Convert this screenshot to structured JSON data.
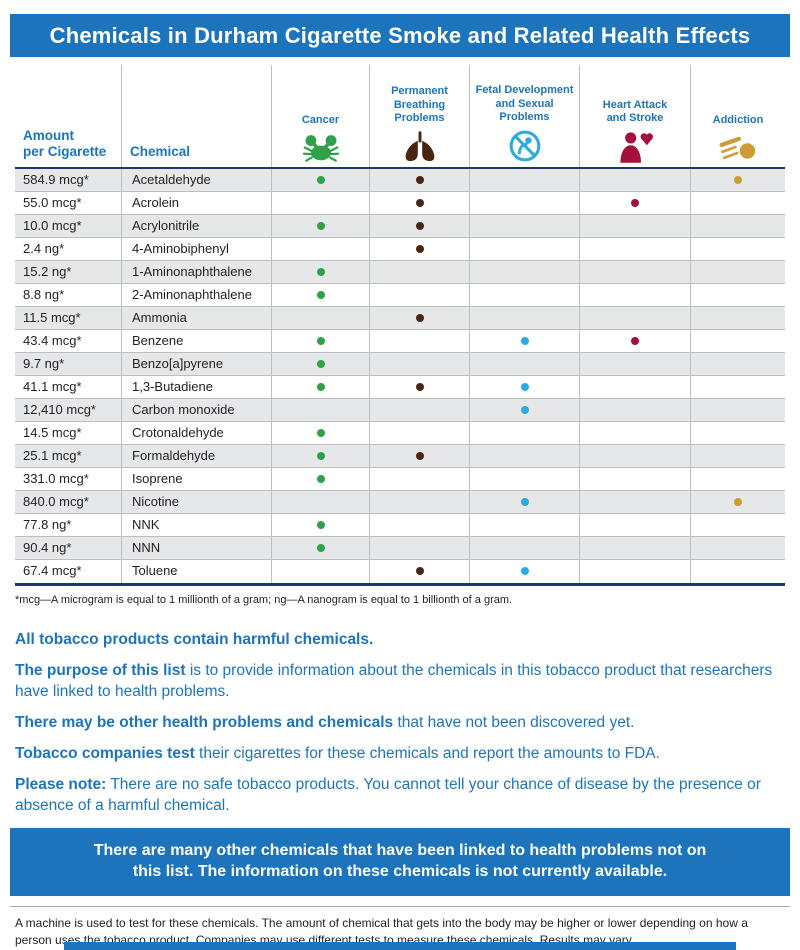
{
  "title": "Chemicals in Durham Cigarette Smoke and Related Health Effects",
  "table": {
    "amount_header": "Amount\nper Cigarette",
    "chemical_header": "Chemical",
    "columns": [
      {
        "key": "cancer",
        "label": "Cancer",
        "icon": "cancer-crab-icon",
        "dot_color": "#2FA148"
      },
      {
        "key": "breathing",
        "label": "Permanent\nBreathing\nProblems",
        "icon": "lungs-icon",
        "dot_color": "#4A2511"
      },
      {
        "key": "fetal",
        "label": "Fetal Development\nand Sexual\nProblems",
        "icon": "fetal-prohibited-icon",
        "dot_color": "#29ABE2"
      },
      {
        "key": "heart",
        "label": "Heart Attack\nand Stroke",
        "icon": "heart-attack-stroke-icon",
        "dot_color": "#A50F3C"
      },
      {
        "key": "addiction",
        "label": "Addiction",
        "icon": "addiction-icon",
        "dot_color": "#CE9B38"
      }
    ],
    "rows": [
      {
        "amount": "584.9 mcg*",
        "chemical": "Acetaldehyde",
        "effects": [
          "cancer",
          "breathing",
          "addiction"
        ]
      },
      {
        "amount": "55.0 mcg*",
        "chemical": "Acrolein",
        "effects": [
          "breathing",
          "heart"
        ]
      },
      {
        "amount": "10.0 mcg*",
        "chemical": "Acrylonitrile",
        "effects": [
          "cancer",
          "breathing"
        ]
      },
      {
        "amount": "2.4 ng*",
        "chemical": "4-Aminobiphenyl",
        "effects": [
          "breathing"
        ]
      },
      {
        "amount": "15.2 ng*",
        "chemical": "1-Aminonaphthalene",
        "effects": [
          "cancer"
        ]
      },
      {
        "amount": "8.8 ng*",
        "chemical": "2-Aminonaphthalene",
        "effects": [
          "cancer"
        ]
      },
      {
        "amount": "11.5 mcg*",
        "chemical": "Ammonia",
        "effects": [
          "breathing"
        ]
      },
      {
        "amount": "43.4 mcg*",
        "chemical": "Benzene",
        "effects": [
          "cancer",
          "fetal",
          "heart"
        ]
      },
      {
        "amount": "9.7 ng*",
        "chemical": "Benzo[a]pyrene",
        "effects": [
          "cancer"
        ]
      },
      {
        "amount": "41.1 mcg*",
        "chemical": "1,3-Butadiene",
        "effects": [
          "cancer",
          "breathing",
          "fetal"
        ]
      },
      {
        "amount": "12,410 mcg*",
        "chemical": "Carbon monoxide",
        "effects": [
          "fetal"
        ]
      },
      {
        "amount": "14.5 mcg*",
        "chemical": "Crotonaldehyde",
        "effects": [
          "cancer"
        ]
      },
      {
        "amount": "25.1 mcg*",
        "chemical": "Formaldehyde",
        "effects": [
          "cancer",
          "breathing"
        ]
      },
      {
        "amount": "331.0 mcg*",
        "chemical": "Isoprene",
        "effects": [
          "cancer"
        ]
      },
      {
        "amount": "840.0 mcg*",
        "chemical": "Nicotine",
        "effects": [
          "fetal",
          "addiction"
        ]
      },
      {
        "amount": "77.8 ng*",
        "chemical": "NNK",
        "effects": [
          "cancer"
        ]
      },
      {
        "amount": "90.4 ng*",
        "chemical": "NNN",
        "effects": [
          "cancer"
        ]
      },
      {
        "amount": "67.4 mcg*",
        "chemical": "Toluene",
        "effects": [
          "breathing",
          "fetal"
        ]
      }
    ],
    "footnote": "*mcg—A microgram is equal to 1 millionth of a gram; ng—A nanogram is equal to 1 billionth of a gram."
  },
  "paragraphs": [
    {
      "bold": "All tobacco products contain harmful chemicals.",
      "rest": ""
    },
    {
      "bold": "The purpose of this list",
      "rest": " is to provide information about the chemicals in this tobacco product that researchers have linked to health problems."
    },
    {
      "bold": "There may be other health problems and chemicals",
      "rest": " that have not been discovered yet."
    },
    {
      "bold": "Tobacco companies test",
      "rest": " their cigarettes for these chemicals and report the amounts to FDA."
    },
    {
      "bold": "Please note:",
      "rest": " There are no safe tobacco products. You cannot tell your chance of disease by the presence or absence of a harmful chemical."
    }
  ],
  "banner": "There are many other chemicals that have been linked to health problems not on this list. The information on these chemicals is not currently available.",
  "machine_note": "A machine is used to test for these chemicals. The amount of chemical that gets into the body may be higher or lower depending on how a person uses the tobacco product. Companies may use different tests to measure these chemicals. Results may vary.",
  "colors": {
    "primary_blue": "#1C75BC",
    "navy_rule": "#1B3A6B",
    "row_alt_gray": "#E6E7E8",
    "grid_gray": "#BCBEC0",
    "cancer_green": "#2FA148",
    "breathing_brown": "#4A2511",
    "fetal_blue": "#29ABE2",
    "heart_maroon": "#A50F3C",
    "addiction_gold": "#CE9B38"
  }
}
